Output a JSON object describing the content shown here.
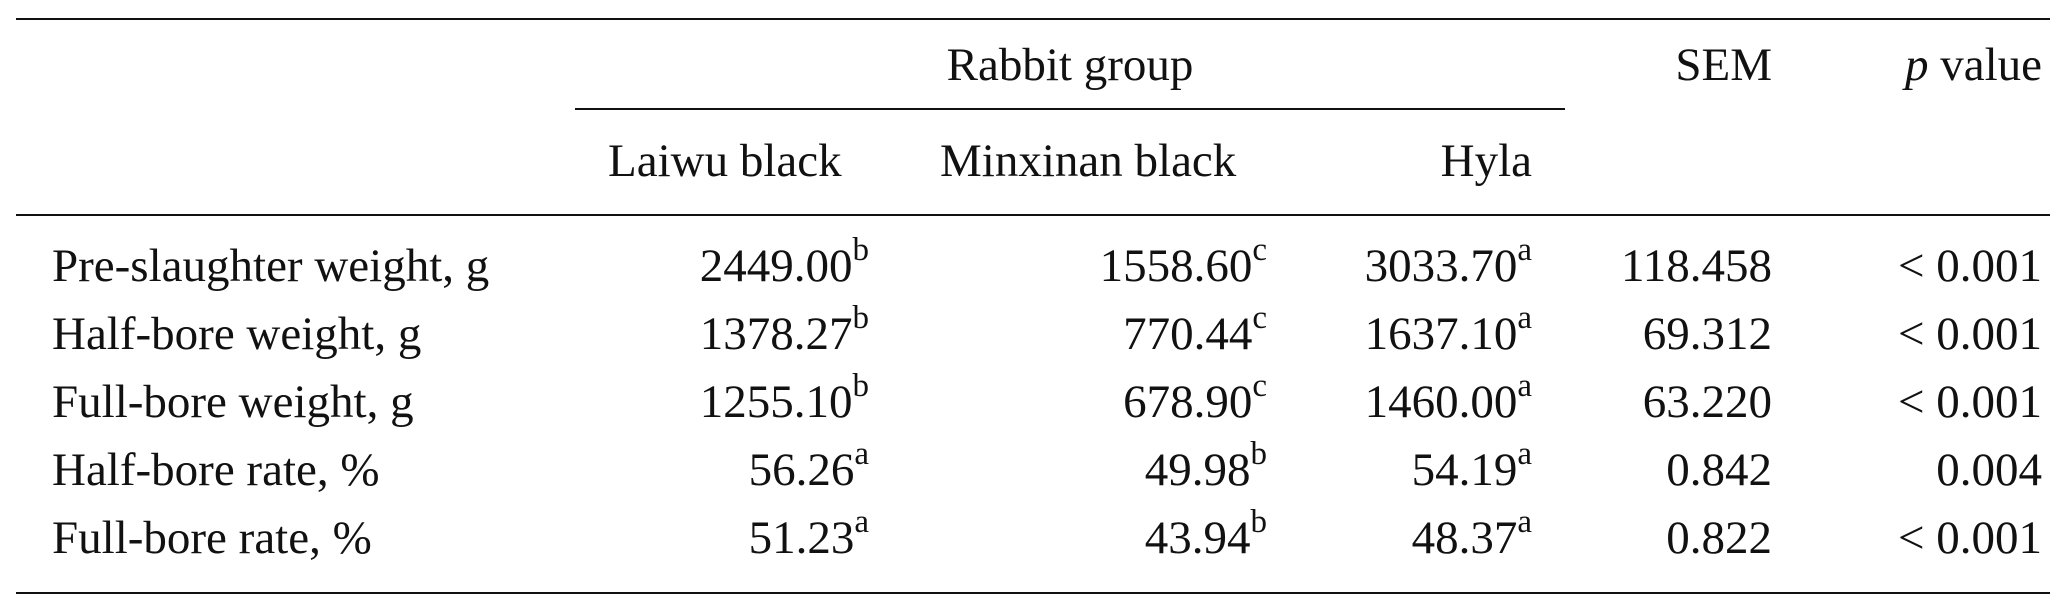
{
  "table": {
    "group_title": "Rabbit group",
    "sem_header": "SEM",
    "p_header_italic": "p",
    "p_header_rest": " value",
    "groups": [
      "Laiwu black",
      "Minxinan black",
      "Hyla"
    ],
    "rows": [
      {
        "label": "Pre-slaughter weight, g",
        "laiwu": "2449.00",
        "laiwu_sup": "b",
        "minx": "1558.60",
        "minx_sup": "c",
        "hyla": "3033.70",
        "hyla_sup": "a",
        "sem": "118.458",
        "p": "< 0.001"
      },
      {
        "label": "Half-bore weight, g",
        "laiwu": "1378.27",
        "laiwu_sup": "b",
        "minx": "770.44",
        "minx_sup": "c",
        "hyla": "1637.10",
        "hyla_sup": "a",
        "sem": "69.312",
        "p": "< 0.001"
      },
      {
        "label": "Full-bore weight, g",
        "laiwu": "1255.10",
        "laiwu_sup": "b",
        "minx": "678.90",
        "minx_sup": "c",
        "hyla": "1460.00",
        "hyla_sup": "a",
        "sem": "63.220",
        "p": "< 0.001"
      },
      {
        "label": "Half-bore rate, %",
        "laiwu": "56.26",
        "laiwu_sup": "a",
        "minx": "49.98",
        "minx_sup": "b",
        "hyla": "54.19",
        "hyla_sup": "a",
        "sem": "0.842",
        "p": "0.004"
      },
      {
        "label": "Full-bore rate, %",
        "laiwu": "51.23",
        "laiwu_sup": "a",
        "minx": "43.94",
        "minx_sup": "b",
        "hyla": "48.37",
        "hyla_sup": "a",
        "sem": "0.822",
        "p": "< 0.001"
      }
    ]
  }
}
